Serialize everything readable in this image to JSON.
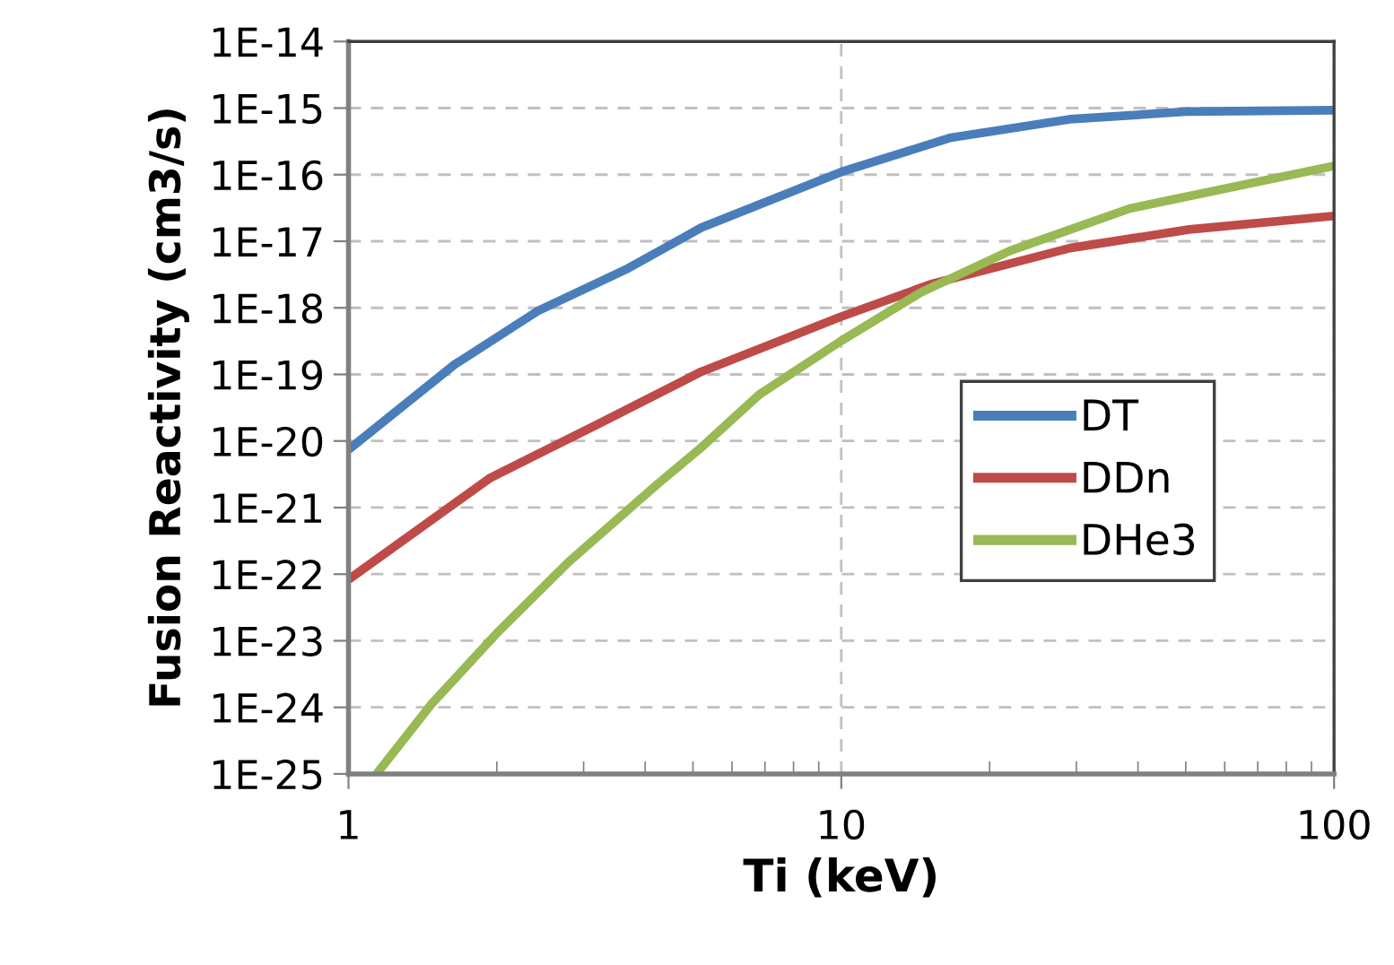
{
  "chart_data": {
    "type": "line",
    "xlabel": "Ti (keV)",
    "ylabel": "Fusion Reactivity (cm3/s)",
    "log": "xy",
    "grid": true,
    "legend": "right",
    "line_style": "solid",
    "marker": "none",
    "xlim": [
      1,
      100
    ],
    "xticks": [
      1,
      10,
      100
    ],
    "ylim": [
      1e-25,
      1e-14
    ],
    "yticks": [
      {
        "value": 1e-25,
        "label": "1E-25"
      },
      {
        "value": 1e-24,
        "label": "1E-24"
      },
      {
        "value": 1e-23,
        "label": "1E-23"
      },
      {
        "value": 1e-22,
        "label": "1E-22"
      },
      {
        "value": 1e-21,
        "label": "1E-21"
      },
      {
        "value": 1e-20,
        "label": "1E-20"
      },
      {
        "value": 1e-19,
        "label": "1E-19"
      },
      {
        "value": 1e-18,
        "label": "1E-18"
      },
      {
        "value": 1e-17,
        "label": "1E-17"
      },
      {
        "value": 1e-16,
        "label": "1E-16"
      },
      {
        "value": 1e-15,
        "label": "1E-15"
      },
      {
        "value": 1e-14,
        "label": "1E-14"
      }
    ],
    "series": [
      {
        "name": "DT",
        "color": "#4a7ebb",
        "x": [
          1,
          1.64,
          2.43,
          3.69,
          5.2,
          10,
          16.7,
          29.1,
          50.8,
          100
        ],
        "values": [
          7.4e-21,
          1.4e-19,
          9.1e-19,
          3.9e-18,
          1.6e-17,
          1.1e-16,
          3.6e-16,
          6.8e-16,
          8.9e-16,
          9.3e-16
        ]
      },
      {
        "name": "DDn",
        "color": "#be4b48",
        "x": [
          1,
          1.94,
          3.21,
          5.2,
          10,
          15.3,
          29.1,
          50.8,
          100
        ],
        "values": [
          8.3e-23,
          2.8e-21,
          1.8e-20,
          1.1e-19,
          7.4e-19,
          2.3e-18,
          7.9e-18,
          1.5e-17,
          2.4e-17
        ]
      },
      {
        "name": "DHe3",
        "color": "#98b954",
        "x": [
          1.14,
          1.47,
          2.0,
          2.79,
          4.25,
          5.2,
          6.82,
          10,
          14.5,
          22,
          38.5,
          100
        ],
        "values": [
          1e-25,
          1.1e-24,
          1.3e-23,
          1.5e-22,
          2.3e-21,
          8e-21,
          5e-20,
          3.2e-19,
          1.7e-18,
          7.2e-18,
          3.1e-17,
          1.35e-16
        ]
      }
    ]
  }
}
